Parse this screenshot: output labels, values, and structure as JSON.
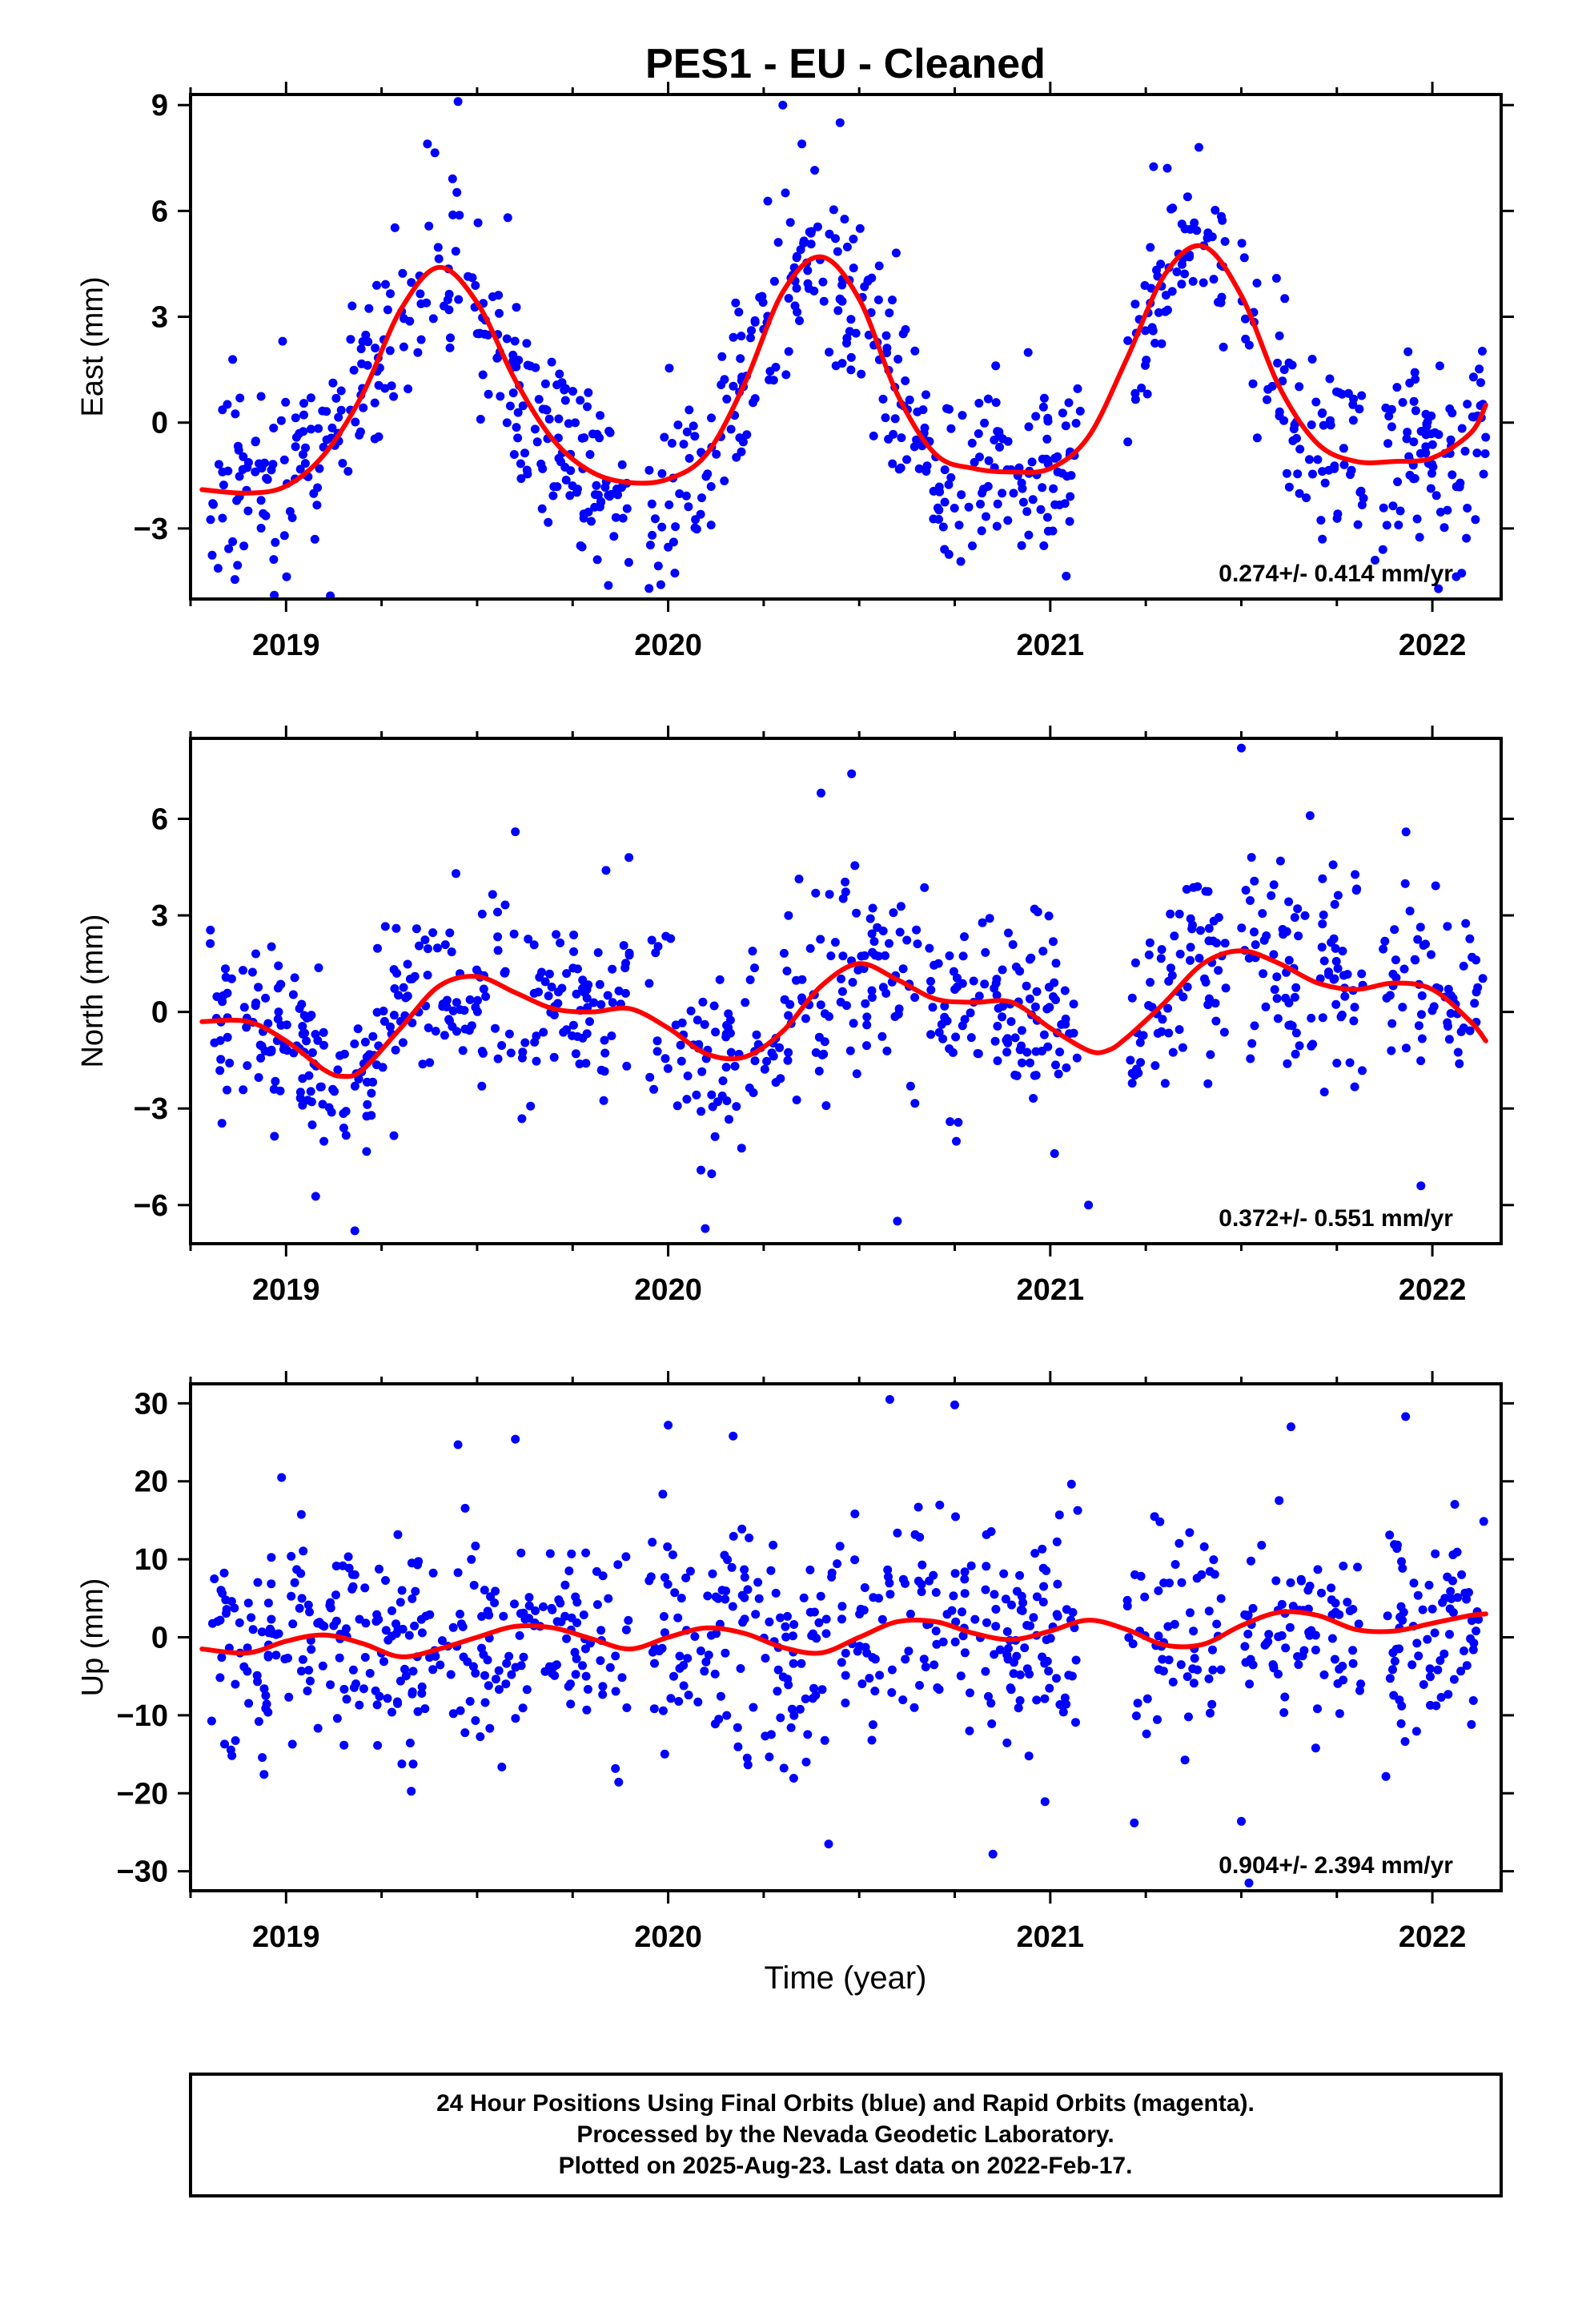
{
  "title": "PES1  - EU - Cleaned",
  "xlabel": "Time (year)",
  "colors": {
    "points": "#0000ff",
    "fit": "#ff0000",
    "frame": "#000000"
  },
  "footer": {
    "line1": "24 Hour Positions Using Final Orbits (blue) and Rapid Orbits (magenta).",
    "line2": "Processed by the Nevada Geodetic Laboratory.",
    "line3": "Plotted on 2025-Aug-23. Last data on 2022-Feb-17."
  },
  "chart_data": [
    {
      "type": "scatter",
      "ylabel": "East (mm)",
      "rate_label": "0.274+/- 0.414 mm/yr",
      "xlim": [
        2018.75,
        2022.18
      ],
      "ylim": [
        -5.0,
        9.3
      ],
      "xticks": [
        {
          "v": 2019,
          "l": "2019"
        },
        {
          "v": 2020,
          "l": "2020"
        },
        {
          "v": 2021,
          "l": "2021"
        },
        {
          "v": 2022,
          "l": "2022"
        }
      ],
      "yticks": [
        {
          "v": -3,
          "l": "−3"
        },
        {
          "v": 0,
          "l": "0"
        },
        {
          "v": 3,
          "l": "3"
        },
        {
          "v": 6,
          "l": "6"
        },
        {
          "v": 9,
          "l": "9"
        }
      ],
      "fit": {
        "x": [
          2018.78,
          2018.9,
          2019.0,
          2019.1,
          2019.2,
          2019.3,
          2019.4,
          2019.5,
          2019.6,
          2019.7,
          2019.8,
          2019.9,
          2020.0,
          2020.1,
          2020.2,
          2020.3,
          2020.4,
          2020.5,
          2020.6,
          2020.7,
          2020.8,
          2020.9,
          2021.0,
          2021.1,
          2021.2,
          2021.3,
          2021.4,
          2021.5,
          2021.6,
          2021.7,
          2021.8,
          2021.9,
          2022.0,
          2022.1,
          2022.14
        ],
        "y": [
          -1.9,
          -2.0,
          -1.8,
          -0.9,
          0.8,
          3.2,
          4.4,
          3.4,
          1.2,
          -0.5,
          -1.4,
          -1.7,
          -1.6,
          -0.9,
          1.1,
          3.7,
          4.7,
          3.5,
          0.8,
          -0.9,
          -1.3,
          -1.4,
          -1.3,
          -0.4,
          1.8,
          4.2,
          5.0,
          3.6,
          1.0,
          -0.6,
          -1.1,
          -1.1,
          -1.0,
          -0.3,
          0.5
        ]
      },
      "points": {
        "n": 900,
        "seed": 11,
        "noise": 1.35,
        "gaps": [
          [
            2019.9,
            2019.95
          ],
          [
            2021.08,
            2021.2
          ],
          [
            2021.46,
            2021.5
          ],
          [
            2021.82,
            2021.87
          ]
        ],
        "outliers": [
          {
            "x": 2019.45,
            "y": 9.1
          },
          {
            "x": 2020.3,
            "y": 9.0
          },
          {
            "x": 2020.45,
            "y": 8.5
          },
          {
            "x": 2019.37,
            "y": 7.9
          },
          {
            "x": 2020.35,
            "y": 7.9
          },
          {
            "x": 2019.95,
            "y": -4.7
          },
          {
            "x": 2021.85,
            "y": -3.9
          }
        ]
      }
    },
    {
      "type": "scatter",
      "ylabel": "North (mm)",
      "rate_label": "0.372+/- 0.551 mm/yr",
      "xlim": [
        2018.75,
        2022.18
      ],
      "ylim": [
        -7.2,
        8.5
      ],
      "xticks": [
        {
          "v": 2019,
          "l": "2019"
        },
        {
          "v": 2020,
          "l": "2020"
        },
        {
          "v": 2021,
          "l": "2021"
        },
        {
          "v": 2022,
          "l": "2022"
        }
      ],
      "yticks": [
        {
          "v": -6,
          "l": "−6"
        },
        {
          "v": -3,
          "l": "−3"
        },
        {
          "v": 0,
          "l": "0"
        },
        {
          "v": 3,
          "l": "3"
        },
        {
          "v": 6,
          "l": "6"
        }
      ],
      "fit": {
        "x": [
          2018.78,
          2018.9,
          2019.0,
          2019.1,
          2019.15,
          2019.2,
          2019.3,
          2019.4,
          2019.5,
          2019.6,
          2019.7,
          2019.8,
          2019.9,
          2020.0,
          2020.1,
          2020.2,
          2020.3,
          2020.4,
          2020.5,
          2020.6,
          2020.7,
          2020.8,
          2020.9,
          2021.0,
          2021.1,
          2021.15,
          2021.2,
          2021.3,
          2021.4,
          2021.5,
          2021.6,
          2021.7,
          2021.8,
          2021.9,
          2022.0,
          2022.1,
          2022.14
        ],
        "y": [
          -0.3,
          -0.3,
          -0.9,
          -1.8,
          -2.0,
          -1.8,
          -0.5,
          0.8,
          1.1,
          0.6,
          0.1,
          0.0,
          0.1,
          -0.5,
          -1.3,
          -1.4,
          -0.6,
          0.8,
          1.5,
          1.0,
          0.4,
          0.3,
          0.3,
          -0.5,
          -1.2,
          -1.2,
          -0.8,
          0.3,
          1.5,
          1.9,
          1.5,
          0.9,
          0.7,
          0.9,
          0.7,
          -0.3,
          -0.9
        ]
      },
      "points": {
        "n": 900,
        "seed": 23,
        "noise": 1.5,
        "gaps": [
          [
            2019.9,
            2019.95
          ],
          [
            2021.08,
            2021.2
          ],
          [
            2021.46,
            2021.5
          ],
          [
            2021.82,
            2021.87
          ]
        ],
        "outliers": [
          {
            "x": 2021.5,
            "y": 8.2
          },
          {
            "x": 2020.48,
            "y": 7.4
          },
          {
            "x": 2019.6,
            "y": 5.6
          },
          {
            "x": 2020.4,
            "y": 6.8
          },
          {
            "x": 2019.18,
            "y": -6.8
          },
          {
            "x": 2020.6,
            "y": -6.5
          },
          {
            "x": 2021.1,
            "y": -6.0
          },
          {
            "x": 2021.97,
            "y": -5.4
          },
          {
            "x": 2021.68,
            "y": 6.1
          }
        ]
      }
    },
    {
      "type": "scatter",
      "ylabel": "Up (mm)",
      "rate_label": "0.904+/- 2.394 mm/yr",
      "xlim": [
        2018.75,
        2022.18
      ],
      "ylim": [
        -32.5,
        32.5
      ],
      "xticks": [
        {
          "v": 2019,
          "l": "2019"
        },
        {
          "v": 2020,
          "l": "2020"
        },
        {
          "v": 2021,
          "l": "2021"
        },
        {
          "v": 2022,
          "l": "2022"
        }
      ],
      "yticks": [
        {
          "v": -30,
          "l": "−30"
        },
        {
          "v": -20,
          "l": "−20"
        },
        {
          "v": -10,
          "l": "−10"
        },
        {
          "v": 0,
          "l": "0"
        },
        {
          "v": 10,
          "l": "10"
        },
        {
          "v": 20,
          "l": "20"
        },
        {
          "v": 30,
          "l": "30"
        }
      ],
      "fit": {
        "x": [
          2018.78,
          2018.9,
          2019.0,
          2019.1,
          2019.2,
          2019.3,
          2019.4,
          2019.5,
          2019.6,
          2019.7,
          2019.8,
          2019.9,
          2020.0,
          2020.1,
          2020.2,
          2020.3,
          2020.4,
          2020.5,
          2020.6,
          2020.7,
          2020.8,
          2020.9,
          2021.0,
          2021.1,
          2021.2,
          2021.3,
          2021.4,
          2021.5,
          2021.6,
          2021.7,
          2021.8,
          2021.9,
          2022.0,
          2022.1,
          2022.14
        ],
        "y": [
          -1.5,
          -2.0,
          -0.5,
          0.3,
          -0.8,
          -2.5,
          -1.5,
          0.0,
          1.4,
          1.2,
          -0.2,
          -1.5,
          0.0,
          1.2,
          0.5,
          -1.3,
          -2.0,
          0.0,
          2.0,
          2.0,
          0.5,
          -0.3,
          0.8,
          2.2,
          1.0,
          -1.0,
          -0.9,
          1.5,
          3.2,
          2.8,
          1.0,
          0.8,
          1.8,
          2.8,
          3.0
        ]
      },
      "points": {
        "n": 900,
        "seed": 37,
        "noise": 7.0,
        "gaps": [
          [
            2019.9,
            2019.95
          ],
          [
            2021.08,
            2021.2
          ],
          [
            2021.46,
            2021.5
          ],
          [
            2021.82,
            2021.87
          ]
        ],
        "outliers": [
          {
            "x": 2020.58,
            "y": 30.5
          },
          {
            "x": 2020.75,
            "y": 29.8
          },
          {
            "x": 2021.93,
            "y": 28.3
          },
          {
            "x": 2020.0,
            "y": 27.2
          },
          {
            "x": 2021.63,
            "y": 27.0
          },
          {
            "x": 2020.17,
            "y": 25.8
          },
          {
            "x": 2019.6,
            "y": 25.4
          },
          {
            "x": 2019.45,
            "y": 24.7
          },
          {
            "x": 2020.85,
            "y": -27.8
          },
          {
            "x": 2020.42,
            "y": -26.5
          },
          {
            "x": 2021.22,
            "y": -23.8
          },
          {
            "x": 2021.5,
            "y": -23.6
          },
          {
            "x": 2021.52,
            "y": -31.5
          }
        ]
      }
    }
  ]
}
